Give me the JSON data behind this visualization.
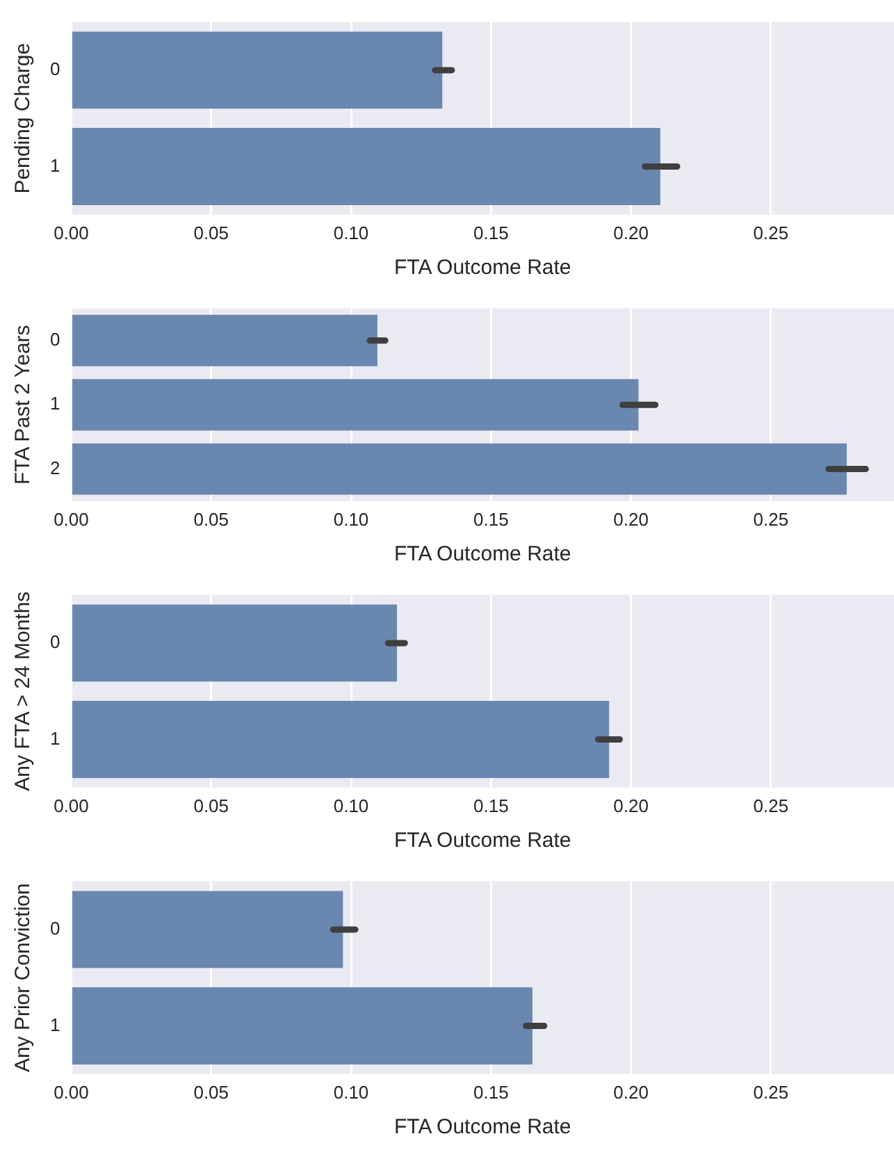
{
  "chart_data": [
    {
      "type": "bar",
      "orientation": "horizontal",
      "ylabel": "Pending Charge",
      "xlabel": "FTA Outcome Rate",
      "categories": [
        "0",
        "1"
      ],
      "color": "#6a87b0",
      "values": [
        0.1326,
        0.2105
      ],
      "errors": [
        [
          0.13,
          0.136
        ],
        [
          0.205,
          0.2165
        ]
      ],
      "xlim": [
        0,
        0.294
      ],
      "xticks": [
        {
          "value": 0,
          "label": "0.00"
        },
        0.05,
        {
          "value": 0.1,
          "label": "0.10"
        },
        0.15,
        {
          "value": 0.2,
          "label": "0.20"
        },
        0.25
      ],
      "grid": "x"
    },
    {
      "type": "bar",
      "orientation": "horizontal",
      "ylabel": "FTA Past 2 Years",
      "xlabel": "FTA Outcome Rate",
      "categories": [
        "0",
        "1",
        "2"
      ],
      "color": "#6a87b0",
      "values": [
        0.1094,
        0.2027,
        0.2771
      ],
      "errors": [
        [
          0.1067,
          0.1122
        ],
        [
          0.197,
          0.2087
        ],
        [
          0.2706,
          0.2839
        ]
      ],
      "xlim": [
        0,
        0.294
      ],
      "xticks": [
        {
          "value": 0,
          "label": "0.00"
        },
        0.05,
        {
          "value": 0.1,
          "label": "0.10"
        },
        0.15,
        {
          "value": 0.2,
          "label": "0.20"
        },
        0.25
      ],
      "grid": "x"
    },
    {
      "type": "bar",
      "orientation": "horizontal",
      "ylabel": "Any FTA > 24 Months",
      "xlabel": "FTA Outcome Rate",
      "categories": [
        "0",
        "1"
      ],
      "color": "#6a87b0",
      "values": [
        0.1164,
        0.1922
      ],
      "errors": [
        [
          0.1132,
          0.1192
        ],
        [
          0.1883,
          0.196
        ]
      ],
      "xlim": [
        0,
        0.294
      ],
      "xticks": [
        {
          "value": 0,
          "label": "0.00"
        },
        0.05,
        {
          "value": 0.1,
          "label": "0.10"
        },
        0.15,
        {
          "value": 0.2,
          "label": "0.20"
        },
        0.25
      ],
      "grid": "x"
    },
    {
      "type": "bar",
      "orientation": "horizontal",
      "ylabel": "Any Prior Conviction",
      "xlabel": "FTA Outcome Rate",
      "categories": [
        "0",
        "1"
      ],
      "color": "#6a87b0",
      "values": [
        0.0971,
        0.1648
      ],
      "errors": [
        [
          0.0936,
          0.1015
        ],
        [
          0.1625,
          0.169
        ]
      ],
      "xlim": [
        0,
        0.294
      ],
      "xticks": [
        {
          "value": 0,
          "label": "0.00"
        },
        0.05,
        {
          "value": 0.1,
          "label": "0.10"
        },
        0.15,
        {
          "value": 0.2,
          "label": "0.20"
        },
        0.25
      ],
      "grid": "x"
    }
  ]
}
